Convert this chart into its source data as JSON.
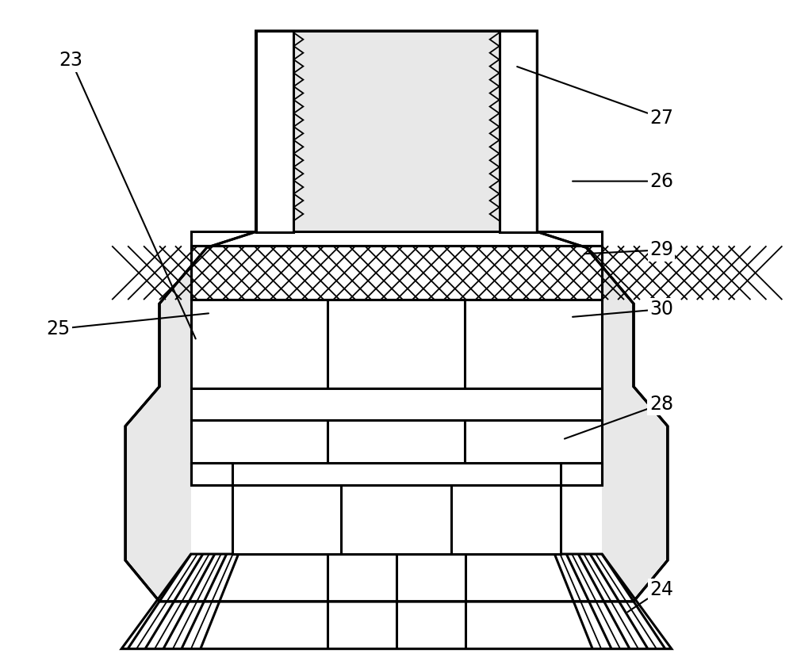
{
  "bg_color": "#ffffff",
  "lc": "#000000",
  "lw_thick": 2.2,
  "lw_thin": 1.3,
  "label_fontsize": 17,
  "fig_width": 10.0,
  "fig_height": 8.34
}
